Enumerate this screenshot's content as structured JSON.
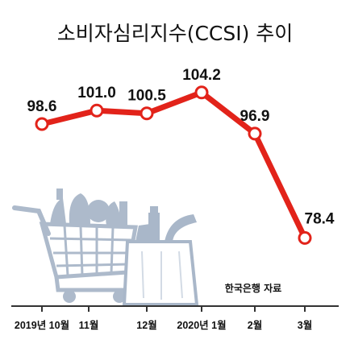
{
  "chart_data": {
    "type": "line",
    "title": "소비자심리지수(CCSI) 추이",
    "categories": [
      "2019년 10월",
      "11월",
      "12월",
      "2020년 1월",
      "2월",
      "3월"
    ],
    "series": [
      {
        "values": [
          98.6,
          101.0,
          100.5,
          104.2,
          96.9,
          78.4
        ]
      }
    ],
    "value_labels": [
      "98.6",
      "101.0",
      "100.5",
      "104.2",
      "96.9",
      "78.4"
    ],
    "source": "한국은행 자료",
    "xlabel": "",
    "ylabel": "",
    "grid": false,
    "colors": {
      "line": "#e2231a",
      "marker_fill": "#ffffff",
      "illustration": "#a9b7c9"
    },
    "icons": [
      "shopping-cart-icon",
      "grocery-bag-icon"
    ]
  }
}
